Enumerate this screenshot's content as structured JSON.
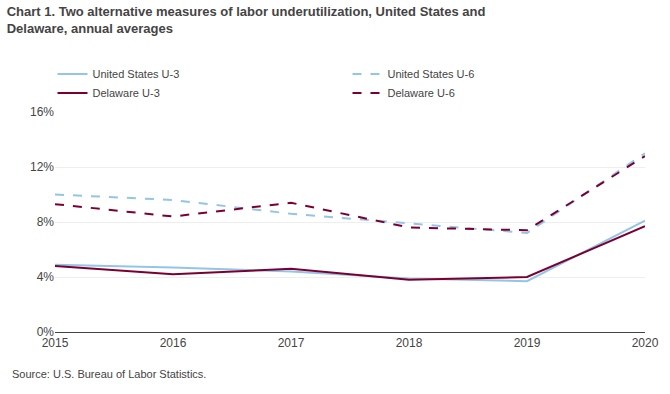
{
  "chart_data": {
    "type": "line",
    "title": "Chart 1. Two alternative measures of labor underutilization, United States and\nDelaware, annual averages",
    "annotations": [
      "Source: U.S. Bureau of Labor Statistics."
    ],
    "x": [
      2015,
      2016,
      2017,
      2018,
      2019,
      2020
    ],
    "series": [
      {
        "name": "United States U-3",
        "color": "#92C5E8",
        "line_style": "solid",
        "values": [
          4.9,
          4.7,
          4.4,
          3.9,
          3.7,
          8.1
        ]
      },
      {
        "name": "United States U-6",
        "color": "#92C5E8",
        "line_style": "dashed",
        "values": [
          10.0,
          9.6,
          8.6,
          7.9,
          7.2,
          13.0
        ]
      },
      {
        "name": "Delaware U-3",
        "color": "#7B0032",
        "line_style": "solid",
        "values": [
          4.8,
          4.2,
          4.6,
          3.8,
          4.0,
          7.7
        ]
      },
      {
        "name": "Delaware U-6",
        "color": "#7B0032",
        "line_style": "dashed",
        "values": [
          9.3,
          8.4,
          9.4,
          7.6,
          7.4,
          12.8
        ]
      }
    ],
    "xlim": [
      2015,
      2020
    ],
    "xticks": [
      2015,
      2016,
      2017,
      2018,
      2019,
      2020
    ],
    "ylim": [
      0,
      16
    ],
    "yticks": [
      {
        "value": 0,
        "label": "0%"
      },
      {
        "value": 4,
        "label": "4%"
      },
      {
        "value": 8,
        "label": "8%"
      },
      {
        "value": 12,
        "label": "12%"
      },
      {
        "value": 16,
        "label": "16%"
      }
    ],
    "grid": true,
    "legend": "top"
  }
}
